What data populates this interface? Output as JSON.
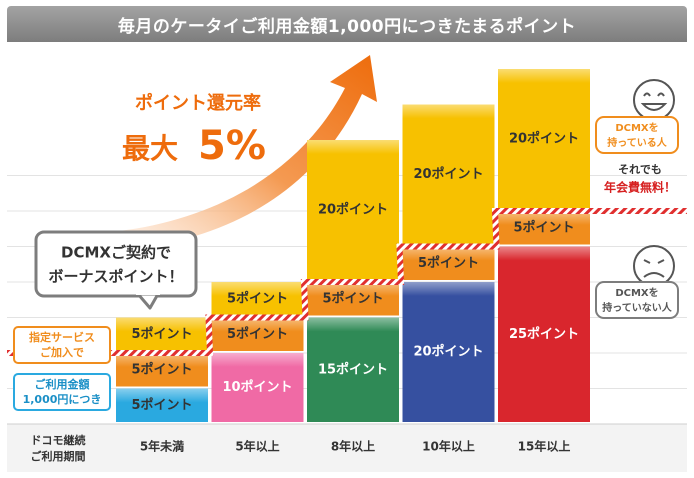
{
  "header": {
    "title": "毎月のケータイご利用金額1,000円につきたまるポイント"
  },
  "promo": {
    "line1": "ポイント還元率",
    "line2_prefix": "最大",
    "line2_value": "5%"
  },
  "callout": {
    "line1": "DCMXご契約で",
    "line2": "ボーナスポイント！"
  },
  "left_labels": {
    "service": [
      "指定サービス",
      "ご加入で"
    ],
    "usage": [
      "ご利用金額",
      "1,000円につき"
    ]
  },
  "right_labels": {
    "with": [
      "DCMXを",
      "持っている人"
    ],
    "note1": "それでも",
    "note2": "年会費無料！",
    "without": [
      "DCMXを",
      "持っていない人"
    ]
  },
  "axis": {
    "row_label": [
      "ドコモ継続",
      "ご利用期間"
    ]
  },
  "colors": {
    "dcmx": "#f7c100",
    "service": "#f08d1d",
    "usage_by_tier": [
      "#2aa9e0",
      "#f06aa5",
      "#2f8a56",
      "#3650a0",
      "#d9262d"
    ],
    "arrow": "#ee6c0c",
    "threshold": "#e02f2f"
  },
  "chart_data": {
    "type": "bar",
    "stacked": true,
    "ylabel": "",
    "categories": [
      "5年未満",
      "5年以上",
      "8年以上",
      "10年以上",
      "15年以上"
    ],
    "series": [
      {
        "values": [
          5,
          10,
          15,
          20,
          25
        ],
        "labels": [
          "5ポイント",
          "10ポイント",
          "15ポイント",
          "20ポイント",
          "25ポイント"
        ]
      },
      {
        "values": [
          5,
          5,
          5,
          5,
          5
        ],
        "labels": [
          "5ポイント",
          "5ポイント",
          "5ポイント",
          "5ポイント",
          "5ポイント"
        ]
      },
      {
        "values": [
          5,
          5,
          20,
          20,
          20
        ],
        "labels": [
          "5ポイント",
          "5ポイント",
          "20ポイント",
          "20ポイント",
          "20ポイント"
        ]
      }
    ],
    "ylim": [
      0,
      50
    ],
    "grid": true
  }
}
